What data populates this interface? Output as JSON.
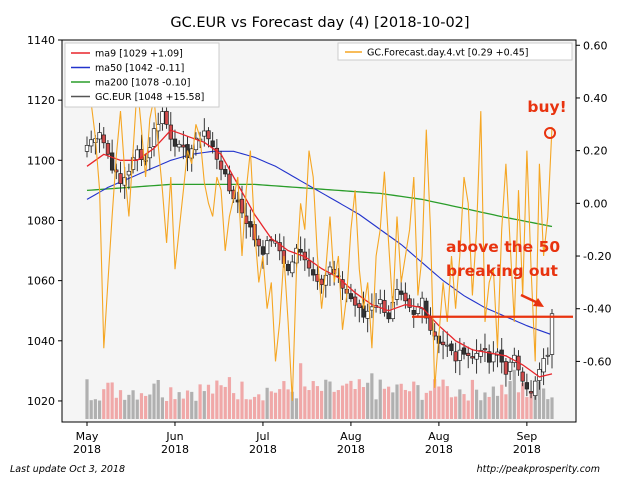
{
  "chart_data": {
    "type": "candlestick",
    "title": "GC.EUR vs Forecast day (4)  [2018-10-02]",
    "footer_left": "Last update Oct  3, 2018",
    "footer_right": "http://peakprosperity.com",
    "ylim_left": [
      1013,
      1140
    ],
    "ylim_right": [
      -0.83,
      0.62
    ],
    "left_ticks": [
      "1140",
      "1120",
      "1100",
      "1080",
      "1060",
      "1040",
      "1020"
    ],
    "left_tick_values": [
      1140,
      1120,
      1100,
      1080,
      1060,
      1040,
      1020
    ],
    "right_ticks": [
      "0.60",
      "0.40",
      "0.20",
      "0.00",
      "-0.20",
      "-0.40",
      "-0.60"
    ],
    "right_tick_values": [
      0.6,
      0.4,
      0.2,
      0.0,
      -0.2,
      -0.4,
      -0.6
    ],
    "x_ticks": [
      {
        "line1": "May",
        "line2": "2018",
        "bar": 0
      },
      {
        "line1": "Jun",
        "line2": "2018",
        "bar": 21
      },
      {
        "line1": "Jul",
        "line2": "2018",
        "bar": 42
      },
      {
        "line1": "Aug",
        "line2": "2018",
        "bar": 63
      },
      {
        "line1": "Aug",
        "line2": "2018",
        "bar": 84
      },
      {
        "line1": "Sep",
        "line2": "2018",
        "bar": 105
      }
    ],
    "legend_left": [
      {
        "label": "ma9 [1029 +1.09]",
        "color": "#e8252b"
      },
      {
        "label": "ma50 [1042 -0.11]",
        "color": "#2233cc"
      },
      {
        "label": "ma200 [1078 -0.10]",
        "color": "#2a9d2a"
      },
      {
        "label": "GC.EUR [1048 +15.58]",
        "color": "#555555"
      }
    ],
    "legend_right": [
      {
        "label": "GC.Forecast.day.4.vt [0.29 +0.45]",
        "color": "#f5a623"
      }
    ],
    "colors": {
      "up": "#ffffff",
      "down": "#d04a4a",
      "down_dark": "#333333",
      "ma9": "#e8252b",
      "ma50": "#2233cc",
      "ma200": "#2a9d2a",
      "forecast": "#f5a623",
      "vol_up": "#b0b0b0",
      "vol_down": "#f0a8a8",
      "annotation": "#e8330f"
    },
    "series": [
      {
        "name": "GC.EUR",
        "kind": "ohlc",
        "close_keypoints": [
          [
            0,
            1105
          ],
          [
            3,
            1110
          ],
          [
            6,
            1098
          ],
          [
            8,
            1092
          ],
          [
            10,
            1097
          ],
          [
            12,
            1103
          ],
          [
            14,
            1100
          ],
          [
            16,
            1110
          ],
          [
            18,
            1116
          ],
          [
            20,
            1108
          ],
          [
            22,
            1104
          ],
          [
            24,
            1102
          ],
          [
            26,
            1106
          ],
          [
            28,
            1110
          ],
          [
            30,
            1104
          ],
          [
            32,
            1098
          ],
          [
            34,
            1090
          ],
          [
            36,
            1086
          ],
          [
            38,
            1080
          ],
          [
            40,
            1074
          ],
          [
            42,
            1070
          ],
          [
            44,
            1074
          ],
          [
            46,
            1070
          ],
          [
            48,
            1063
          ],
          [
            50,
            1070
          ],
          [
            52,
            1068
          ],
          [
            54,
            1062
          ],
          [
            56,
            1060
          ],
          [
            58,
            1064
          ],
          [
            60,
            1060
          ],
          [
            62,
            1056
          ],
          [
            64,
            1052
          ],
          [
            66,
            1048
          ],
          [
            68,
            1052
          ],
          [
            70,
            1053
          ],
          [
            72,
            1048
          ],
          [
            74,
            1056
          ],
          [
            76,
            1052
          ],
          [
            78,
            1048
          ],
          [
            80,
            1054
          ],
          [
            82,
            1044
          ],
          [
            84,
            1040
          ],
          [
            86,
            1038
          ],
          [
            88,
            1034
          ],
          [
            90,
            1037
          ],
          [
            92,
            1034
          ],
          [
            94,
            1038
          ],
          [
            96,
            1033
          ],
          [
            98,
            1036
          ],
          [
            100,
            1030
          ],
          [
            102,
            1034
          ],
          [
            104,
            1028
          ],
          [
            106,
            1022
          ],
          [
            108,
            1030
          ],
          [
            110,
            1036
          ],
          [
            111,
            1048
          ]
        ]
      },
      {
        "name": "ma9",
        "kind": "line",
        "keypoints": [
          [
            0,
            1098
          ],
          [
            4,
            1102
          ],
          [
            8,
            1100
          ],
          [
            12,
            1100
          ],
          [
            16,
            1104
          ],
          [
            20,
            1110
          ],
          [
            24,
            1108
          ],
          [
            28,
            1106
          ],
          [
            32,
            1102
          ],
          [
            36,
            1092
          ],
          [
            40,
            1082
          ],
          [
            44,
            1074
          ],
          [
            48,
            1070
          ],
          [
            52,
            1068
          ],
          [
            56,
            1064
          ],
          [
            60,
            1061
          ],
          [
            64,
            1056
          ],
          [
            68,
            1052
          ],
          [
            72,
            1050
          ],
          [
            76,
            1052
          ],
          [
            80,
            1051
          ],
          [
            84,
            1045
          ],
          [
            88,
            1040
          ],
          [
            92,
            1037
          ],
          [
            96,
            1036
          ],
          [
            100,
            1035
          ],
          [
            104,
            1032
          ],
          [
            108,
            1028
          ],
          [
            111,
            1029
          ]
        ]
      },
      {
        "name": "ma50",
        "kind": "line",
        "keypoints": [
          [
            0,
            1087
          ],
          [
            5,
            1091
          ],
          [
            10,
            1094
          ],
          [
            15,
            1097
          ],
          [
            20,
            1100
          ],
          [
            25,
            1102
          ],
          [
            30,
            1103
          ],
          [
            35,
            1103
          ],
          [
            40,
            1101
          ],
          [
            45,
            1098
          ],
          [
            50,
            1094
          ],
          [
            55,
            1090
          ],
          [
            60,
            1086
          ],
          [
            65,
            1082
          ],
          [
            70,
            1077
          ],
          [
            75,
            1072
          ],
          [
            80,
            1066
          ],
          [
            85,
            1060
          ],
          [
            90,
            1055
          ],
          [
            95,
            1051
          ],
          [
            100,
            1048
          ],
          [
            105,
            1045
          ],
          [
            111,
            1042
          ]
        ]
      },
      {
        "name": "ma200",
        "kind": "line",
        "keypoints": [
          [
            0,
            1090
          ],
          [
            10,
            1091
          ],
          [
            20,
            1092
          ],
          [
            30,
            1092
          ],
          [
            40,
            1092
          ],
          [
            50,
            1091
          ],
          [
            60,
            1090
          ],
          [
            70,
            1089
          ],
          [
            80,
            1087
          ],
          [
            90,
            1084
          ],
          [
            100,
            1081
          ],
          [
            111,
            1078
          ]
        ]
      },
      {
        "name": "GC.Forecast.day.4.vt",
        "kind": "line_right_axis",
        "values": [
          0.42,
          0.38,
          0.25,
          0.05,
          -0.55,
          -0.3,
          -0.05,
          0.18,
          0.35,
          0.12,
          -0.05,
          0.2,
          0.45,
          0.28,
          0.1,
          0.32,
          0.4,
          0.22,
          0.05,
          -0.15,
          0.1,
          -0.25,
          -0.1,
          0.05,
          0.2,
          0.15,
          0.3,
          0.25,
          0.08,
          0.0,
          -0.05,
          0.1,
          0.05,
          -0.18,
          -0.05,
          0.02,
          0.1,
          -0.2,
          0.05,
          0.2,
          -0.1,
          -0.3,
          -0.2,
          -0.4,
          -0.3,
          -0.6,
          -0.45,
          -0.2,
          -0.45,
          -0.75,
          -0.25,
          0.0,
          -0.1,
          0.2,
          0.1,
          -0.2,
          -0.4,
          -0.25,
          -0.05,
          -0.3,
          -0.2,
          -0.48,
          -0.35,
          -0.1,
          0.05,
          -0.25,
          -0.4,
          -0.3,
          -0.55,
          -0.2,
          -0.1,
          0.12,
          -0.15,
          -0.4,
          -0.05,
          -0.3,
          -0.2,
          -0.1,
          0.1,
          -0.35,
          -0.2,
          0.28,
          -0.1,
          -0.7,
          -0.5,
          -0.3,
          -0.45,
          -0.2,
          -0.4,
          -0.2,
          0.1,
          0.0,
          -0.35,
          -0.1,
          0.35,
          -0.45,
          -0.3,
          -0.25,
          -0.55,
          -0.1,
          0.15,
          -0.15,
          -0.45,
          0.05,
          -0.35,
          0.2,
          -0.25,
          -0.6,
          0.15,
          -0.2,
          -0.05,
          0.29
        ]
      },
      {
        "name": "volume",
        "kind": "bars",
        "note": "relative volume"
      }
    ],
    "annotations": [
      {
        "text": "buy!",
        "color": "#e8330f"
      },
      {
        "text": "above the 50",
        "color": "#e8330f"
      },
      {
        "text": "breaking out",
        "color": "#e8330f"
      }
    ],
    "breakout_level": 1048
  }
}
